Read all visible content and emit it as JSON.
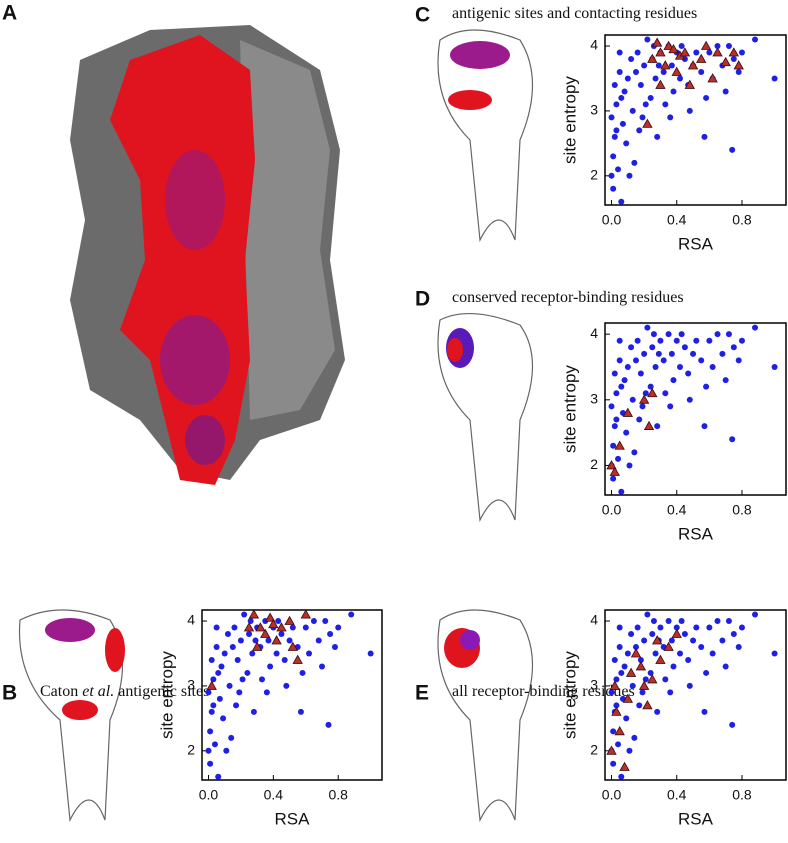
{
  "figure": {
    "panel_a_label": "A"
  },
  "chart_data": [
    {
      "type": "scatter",
      "label": "C",
      "title": [
        "antigenic sites and contacting residues"
      ],
      "xlabel": "RSA",
      "ylabel": "site entropy",
      "xlim": [
        -0.04,
        1.07
      ],
      "ylim": [
        1.55,
        4.17
      ],
      "xticks": [
        {
          "value": 0,
          "label": "0.0"
        },
        0.4,
        0.8
      ],
      "yticks": [
        2,
        3,
        4
      ],
      "series": [
        {
          "color": "#1f1fe6",
          "marker": "circle",
          "x": [
            0.0,
            0.01,
            0.02,
            0.0,
            0.03,
            0.02,
            0.05,
            0.04,
            0.06,
            0.01,
            0.07,
            0.08,
            0.1,
            0.09,
            0.12,
            0.13,
            0.15,
            0.14,
            0.16,
            0.18,
            0.2,
            0.19,
            0.22,
            0.24,
            0.25,
            0.27,
            0.28,
            0.3,
            0.32,
            0.33,
            0.35,
            0.37,
            0.38,
            0.4,
            0.42,
            0.43,
            0.45,
            0.47,
            0.5,
            0.52,
            0.55,
            0.57,
            0.58,
            0.6,
            0.62,
            0.65,
            0.68,
            0.7,
            0.72,
            0.74,
            0.75,
            0.78,
            0.8,
            0.88,
            1.0,
            0.05,
            0.03,
            0.11,
            0.21,
            0.29,
            0.36,
            0.48,
            0.26,
            0.06,
            0.17
          ],
          "values": [
            2.0,
            2.3,
            2.6,
            2.9,
            3.1,
            3.4,
            3.6,
            2.1,
            1.6,
            1.8,
            2.8,
            3.3,
            3.5,
            2.5,
            3.8,
            3.0,
            3.6,
            2.2,
            3.9,
            3.4,
            3.7,
            2.9,
            4.1,
            3.2,
            3.8,
            3.5,
            2.6,
            3.9,
            3.6,
            3.1,
            4.0,
            3.7,
            3.3,
            3.9,
            3.5,
            4.0,
            3.8,
            3.4,
            3.7,
            3.9,
            3.6,
            2.6,
            3.2,
            3.9,
            3.5,
            4.0,
            3.7,
            3.3,
            4.0,
            2.4,
            3.8,
            3.6,
            3.9,
            4.1,
            3.5,
            3.9,
            2.7,
            2.0,
            3.1,
            3.7,
            2.9,
            3.0,
            4.0,
            3.2,
            2.7
          ]
        },
        {
          "color": "#b8302a",
          "marker": "triangle",
          "x": [
            0.25,
            0.28,
            0.3,
            0.33,
            0.35,
            0.4,
            0.42,
            0.45,
            0.48,
            0.5,
            0.55,
            0.58,
            0.62,
            0.7,
            0.75,
            0.78,
            0.22,
            0.3,
            0.38,
            0.65
          ],
          "values": [
            3.8,
            4.05,
            3.9,
            3.7,
            4.0,
            3.6,
            3.85,
            3.9,
            3.4,
            3.7,
            3.8,
            4.0,
            3.5,
            3.75,
            3.9,
            3.7,
            2.8,
            3.4,
            3.95,
            3.9
          ]
        }
      ]
    },
    {
      "type": "scatter",
      "label": "D",
      "title": [
        "conserved receptor-binding residues"
      ],
      "xlabel": "RSA",
      "ylabel": "site entropy",
      "xlim": [
        -0.04,
        1.07
      ],
      "ylim": [
        1.55,
        4.17
      ],
      "xticks": [
        {
          "value": 0,
          "label": "0.0"
        },
        0.4,
        0.8
      ],
      "yticks": [
        2,
        3,
        4
      ],
      "series": [
        {
          "color": "#1f1fe6",
          "marker": "circle",
          "x": [
            0.0,
            0.01,
            0.02,
            0.0,
            0.03,
            0.02,
            0.05,
            0.04,
            0.06,
            0.01,
            0.07,
            0.08,
            0.1,
            0.09,
            0.12,
            0.13,
            0.15,
            0.14,
            0.16,
            0.18,
            0.2,
            0.19,
            0.22,
            0.24,
            0.25,
            0.27,
            0.28,
            0.3,
            0.32,
            0.33,
            0.35,
            0.37,
            0.38,
            0.4,
            0.42,
            0.43,
            0.45,
            0.47,
            0.5,
            0.52,
            0.55,
            0.57,
            0.58,
            0.6,
            0.62,
            0.65,
            0.68,
            0.7,
            0.72,
            0.74,
            0.75,
            0.78,
            0.8,
            0.88,
            1.0,
            0.05,
            0.03,
            0.11,
            0.21,
            0.29,
            0.36,
            0.48,
            0.26,
            0.06,
            0.17
          ],
          "values": [
            2.0,
            2.3,
            2.6,
            2.9,
            3.1,
            3.4,
            3.6,
            2.1,
            1.6,
            1.8,
            2.8,
            3.3,
            3.5,
            2.5,
            3.8,
            3.0,
            3.6,
            2.2,
            3.9,
            3.4,
            3.7,
            2.9,
            4.1,
            3.2,
            3.8,
            3.5,
            2.6,
            3.9,
            3.6,
            3.1,
            4.0,
            3.7,
            3.3,
            3.9,
            3.5,
            4.0,
            3.8,
            3.4,
            3.7,
            3.9,
            3.6,
            2.6,
            3.2,
            3.9,
            3.5,
            4.0,
            3.7,
            3.3,
            4.0,
            2.4,
            3.8,
            3.6,
            3.9,
            4.1,
            3.5,
            3.9,
            2.7,
            2.0,
            3.1,
            3.7,
            2.9,
            3.0,
            4.0,
            3.2,
            2.7
          ]
        },
        {
          "color": "#b8302a",
          "marker": "triangle",
          "x": [
            0.0,
            0.02,
            0.05,
            0.1,
            0.2,
            0.25,
            0.23
          ],
          "values": [
            2.0,
            1.9,
            2.3,
            2.8,
            3.0,
            3.1,
            2.6
          ]
        }
      ]
    },
    {
      "type": "scatter",
      "label": "B",
      "title": [
        "Caton ",
        "et al.",
        " antigenic sites"
      ],
      "xlabel": "RSA",
      "ylabel": "site entropy",
      "xlim": [
        -0.04,
        1.07
      ],
      "ylim": [
        1.55,
        4.17
      ],
      "xticks": [
        {
          "value": 0,
          "label": "0.0"
        },
        0.4,
        0.8
      ],
      "yticks": [
        2,
        3,
        4
      ],
      "series": [
        {
          "color": "#1f1fe6",
          "marker": "circle",
          "x": [
            0.0,
            0.01,
            0.02,
            0.0,
            0.03,
            0.02,
            0.05,
            0.04,
            0.06,
            0.01,
            0.07,
            0.08,
            0.1,
            0.09,
            0.12,
            0.13,
            0.15,
            0.14,
            0.16,
            0.18,
            0.2,
            0.19,
            0.22,
            0.24,
            0.25,
            0.27,
            0.28,
            0.3,
            0.32,
            0.33,
            0.35,
            0.37,
            0.38,
            0.4,
            0.42,
            0.43,
            0.45,
            0.47,
            0.5,
            0.52,
            0.55,
            0.57,
            0.58,
            0.6,
            0.62,
            0.65,
            0.68,
            0.7,
            0.72,
            0.74,
            0.75,
            0.78,
            0.8,
            0.88,
            1.0,
            0.05,
            0.03,
            0.11,
            0.21,
            0.29,
            0.36,
            0.48,
            0.26,
            0.06,
            0.17
          ],
          "values": [
            2.0,
            2.3,
            2.6,
            2.9,
            3.1,
            3.4,
            3.6,
            2.1,
            1.6,
            1.8,
            2.8,
            3.3,
            3.5,
            2.5,
            3.8,
            3.0,
            3.6,
            2.2,
            3.9,
            3.4,
            3.7,
            2.9,
            4.1,
            3.2,
            3.8,
            3.5,
            2.6,
            3.9,
            3.6,
            3.1,
            4.0,
            3.7,
            3.3,
            3.9,
            3.5,
            4.0,
            3.8,
            3.4,
            3.7,
            3.9,
            3.6,
            2.6,
            3.2,
            3.9,
            3.5,
            4.0,
            3.7,
            3.3,
            4.0,
            2.4,
            3.8,
            3.6,
            3.9,
            4.1,
            3.5,
            3.9,
            2.7,
            2.0,
            3.1,
            3.7,
            2.9,
            3.0,
            4.0,
            3.2,
            2.7
          ]
        },
        {
          "color": "#b8302a",
          "marker": "triangle",
          "x": [
            0.28,
            0.32,
            0.35,
            0.38,
            0.42,
            0.45,
            0.5,
            0.55,
            0.6,
            0.3,
            0.25,
            0.02,
            0.4,
            0.52
          ],
          "values": [
            4.1,
            3.9,
            3.8,
            4.05,
            3.7,
            3.9,
            4.0,
            3.4,
            4.1,
            3.6,
            3.9,
            3.0,
            3.95,
            3.6
          ]
        }
      ]
    },
    {
      "type": "scatter",
      "label": "E",
      "title": [
        "all receptor-binding residues"
      ],
      "xlabel": "RSA",
      "ylabel": "site entropy",
      "xlim": [
        -0.04,
        1.07
      ],
      "ylim": [
        1.55,
        4.17
      ],
      "xticks": [
        {
          "value": 0,
          "label": "0.0"
        },
        0.4,
        0.8
      ],
      "yticks": [
        2,
        3,
        4
      ],
      "series": [
        {
          "color": "#1f1fe6",
          "marker": "circle",
          "x": [
            0.0,
            0.01,
            0.02,
            0.0,
            0.03,
            0.02,
            0.05,
            0.04,
            0.06,
            0.01,
            0.07,
            0.08,
            0.1,
            0.09,
            0.12,
            0.13,
            0.15,
            0.14,
            0.16,
            0.18,
            0.2,
            0.19,
            0.22,
            0.24,
            0.25,
            0.27,
            0.28,
            0.3,
            0.32,
            0.33,
            0.35,
            0.37,
            0.38,
            0.4,
            0.42,
            0.43,
            0.45,
            0.47,
            0.5,
            0.52,
            0.55,
            0.57,
            0.58,
            0.6,
            0.62,
            0.65,
            0.68,
            0.7,
            0.72,
            0.74,
            0.75,
            0.78,
            0.8,
            0.88,
            1.0,
            0.05,
            0.03,
            0.11,
            0.21,
            0.29,
            0.36,
            0.48,
            0.26,
            0.06,
            0.17
          ],
          "values": [
            2.0,
            2.3,
            2.6,
            2.9,
            3.1,
            3.4,
            3.6,
            2.1,
            1.6,
            1.8,
            2.8,
            3.3,
            3.5,
            2.5,
            3.8,
            3.0,
            3.6,
            2.2,
            3.9,
            3.4,
            3.7,
            2.9,
            4.1,
            3.2,
            3.8,
            3.5,
            2.6,
            3.9,
            3.6,
            3.1,
            4.0,
            3.7,
            3.3,
            3.9,
            3.5,
            4.0,
            3.8,
            3.4,
            3.7,
            3.9,
            3.6,
            2.6,
            3.2,
            3.9,
            3.5,
            4.0,
            3.7,
            3.3,
            4.0,
            2.4,
            3.8,
            3.6,
            3.9,
            4.1,
            3.5,
            3.9,
            2.7,
            2.0,
            3.1,
            3.7,
            2.9,
            3.0,
            4.0,
            3.2,
            2.7
          ]
        },
        {
          "color": "#b8302a",
          "marker": "triangle",
          "x": [
            0.0,
            0.02,
            0.03,
            0.05,
            0.08,
            0.1,
            0.12,
            0.15,
            0.18,
            0.2,
            0.22,
            0.25,
            0.28,
            0.3,
            0.35,
            0.4
          ],
          "values": [
            2.0,
            3.0,
            2.6,
            2.3,
            1.75,
            2.8,
            3.2,
            3.5,
            3.3,
            3.0,
            2.7,
            3.1,
            3.7,
            3.4,
            3.6,
            3.8
          ]
        }
      ]
    }
  ]
}
